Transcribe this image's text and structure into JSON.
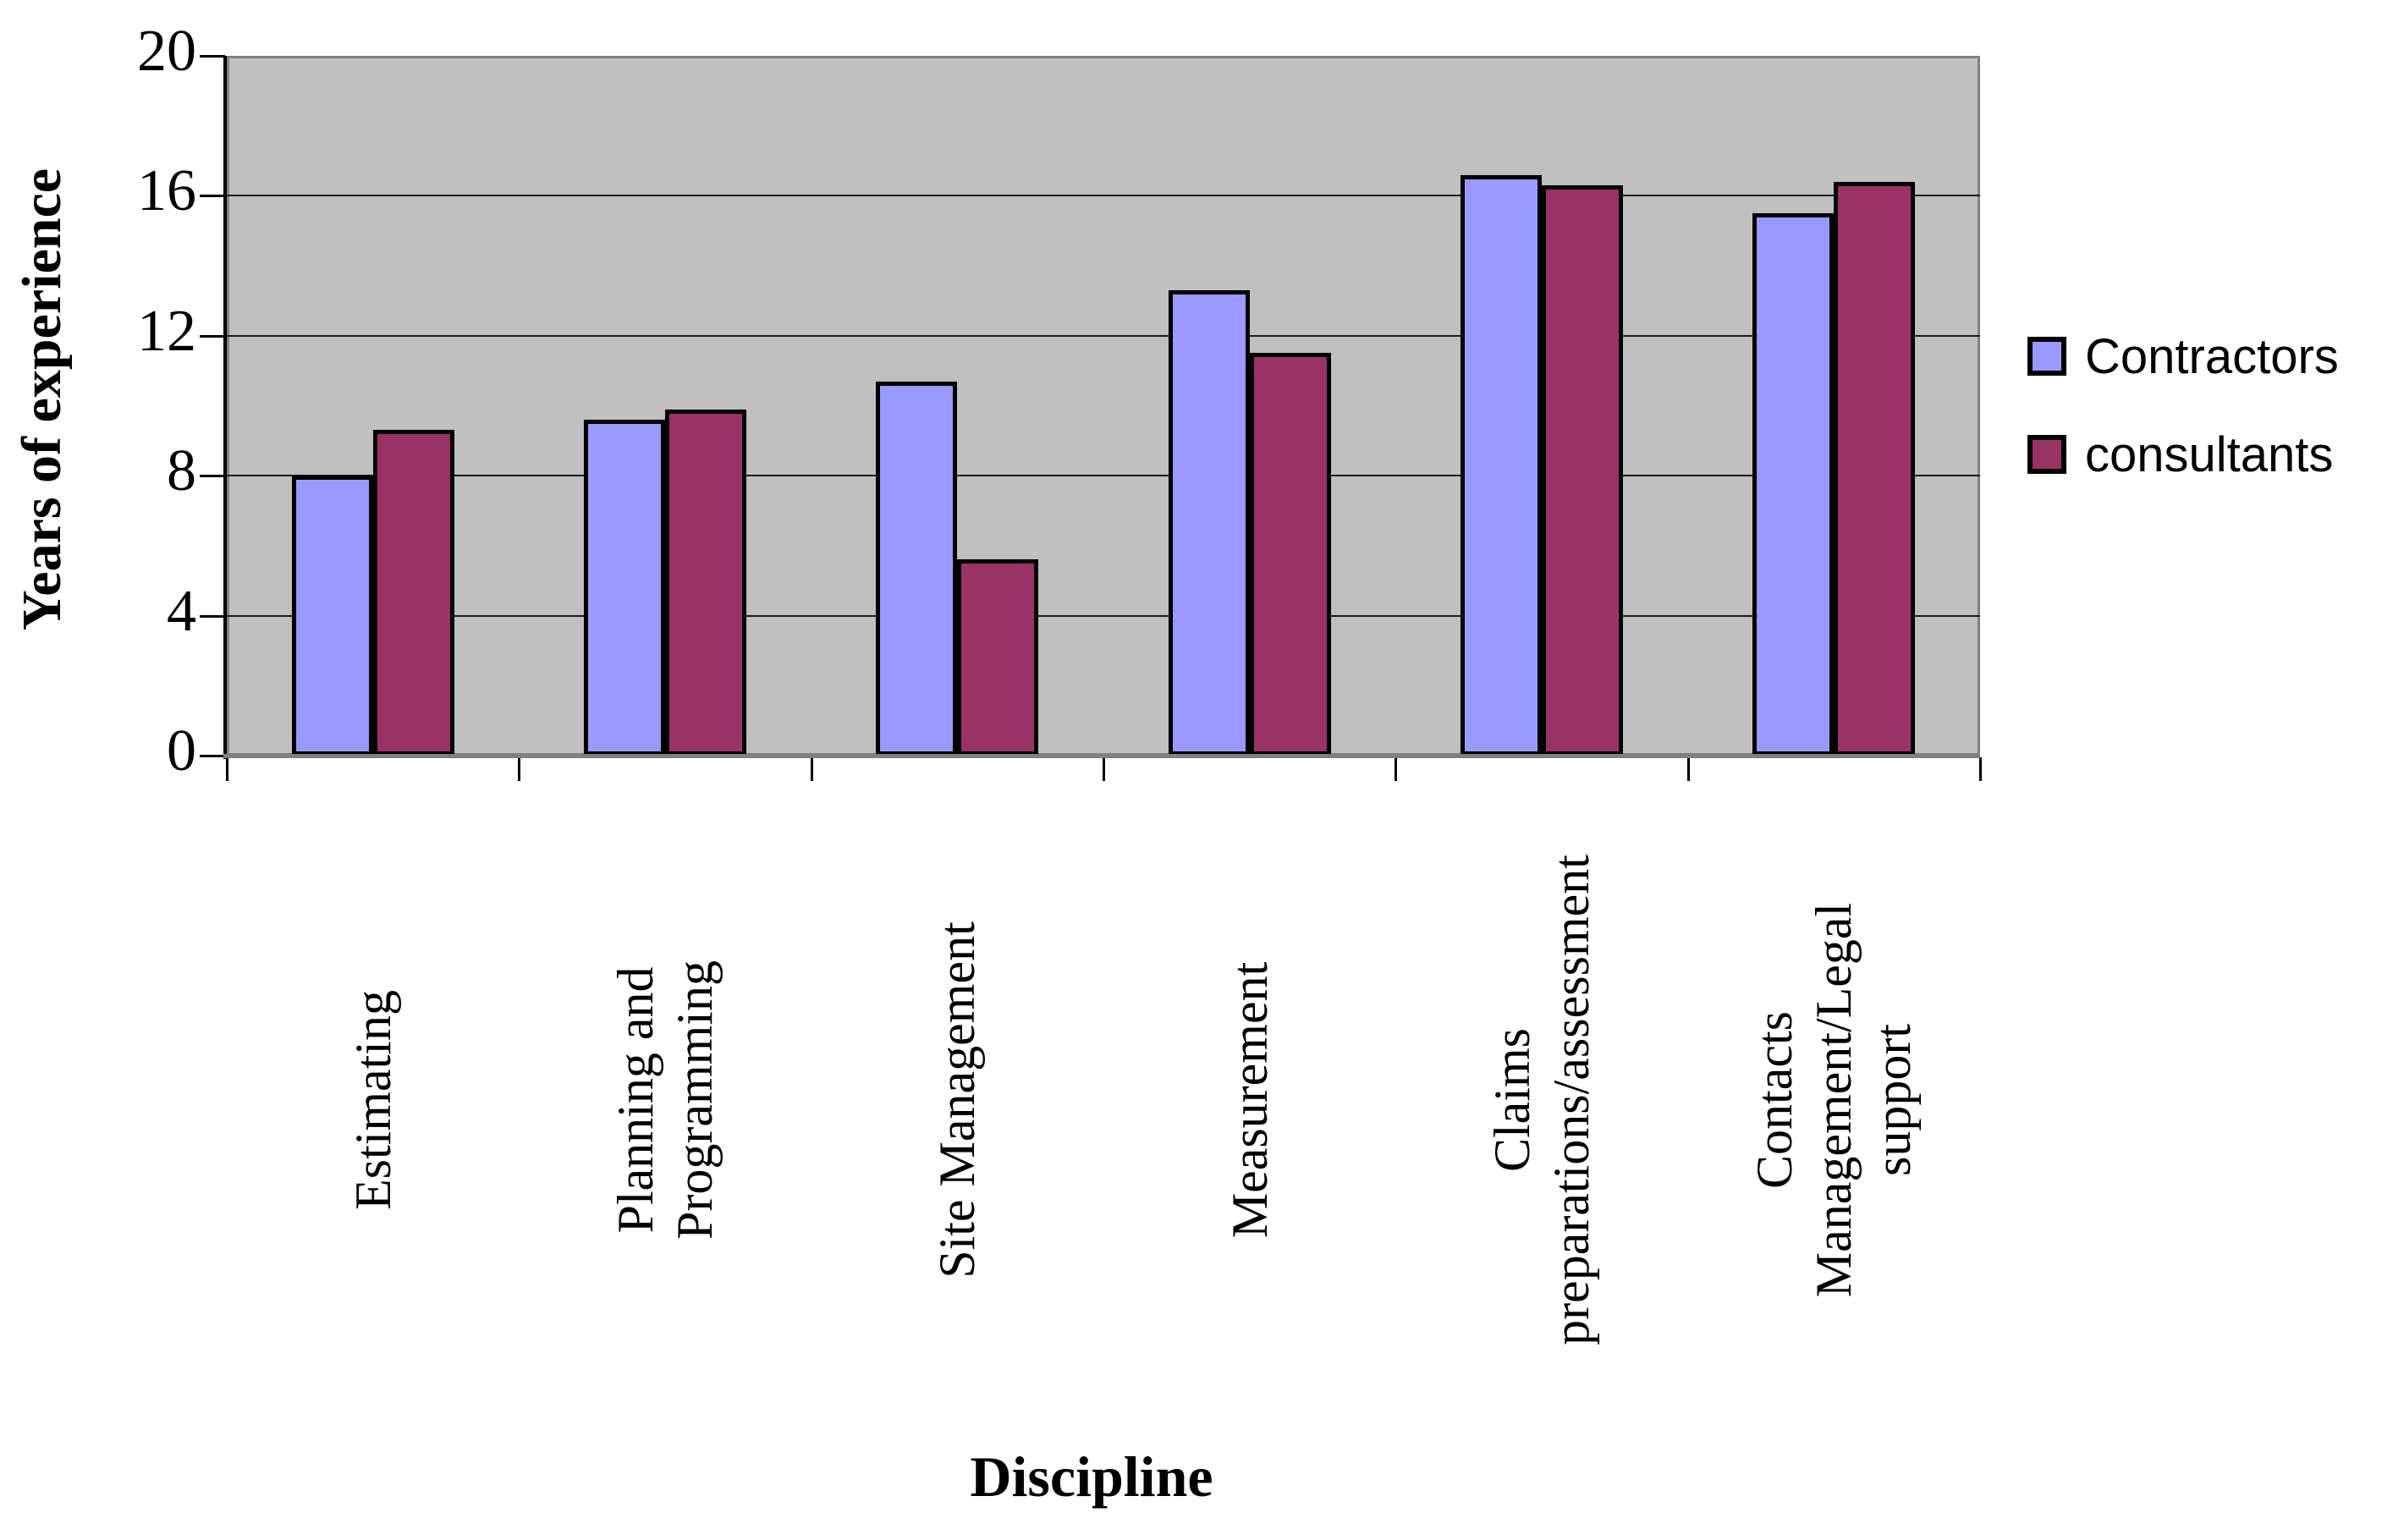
{
  "chart_data": {
    "type": "bar",
    "title": "",
    "xlabel": "Discipline",
    "ylabel": "Years of experience",
    "ylim": [
      0,
      20
    ],
    "yticks": [
      0,
      4,
      8,
      12,
      16,
      20
    ],
    "grid": true,
    "legend_position": "right",
    "plot_background_color": "#C0C0C0",
    "gridline_color": "#000000",
    "categories": [
      {
        "name": "Estimating",
        "lines": [
          "Estimating"
        ]
      },
      {
        "name": "Planning and Programming",
        "lines": [
          "Planning and",
          "Programming"
        ]
      },
      {
        "name": "Site Management",
        "lines": [
          "Site Management"
        ]
      },
      {
        "name": "Measurement",
        "lines": [
          "Measurement"
        ]
      },
      {
        "name": "Claims preparations/assessment",
        "lines": [
          "Claims",
          "preparations/assessment"
        ]
      },
      {
        "name": "Contacts Management/Legal support",
        "lines": [
          "Contacts",
          "Management/Legal",
          "support"
        ]
      }
    ],
    "series": [
      {
        "name": "Contractors",
        "color": "#9999FF",
        "values": [
          8.0,
          9.6,
          10.7,
          13.3,
          16.6,
          15.5
        ]
      },
      {
        "name": "consultants",
        "color": "#993366",
        "values": [
          9.3,
          9.9,
          5.6,
          11.5,
          16.3,
          16.4
        ]
      }
    ]
  }
}
